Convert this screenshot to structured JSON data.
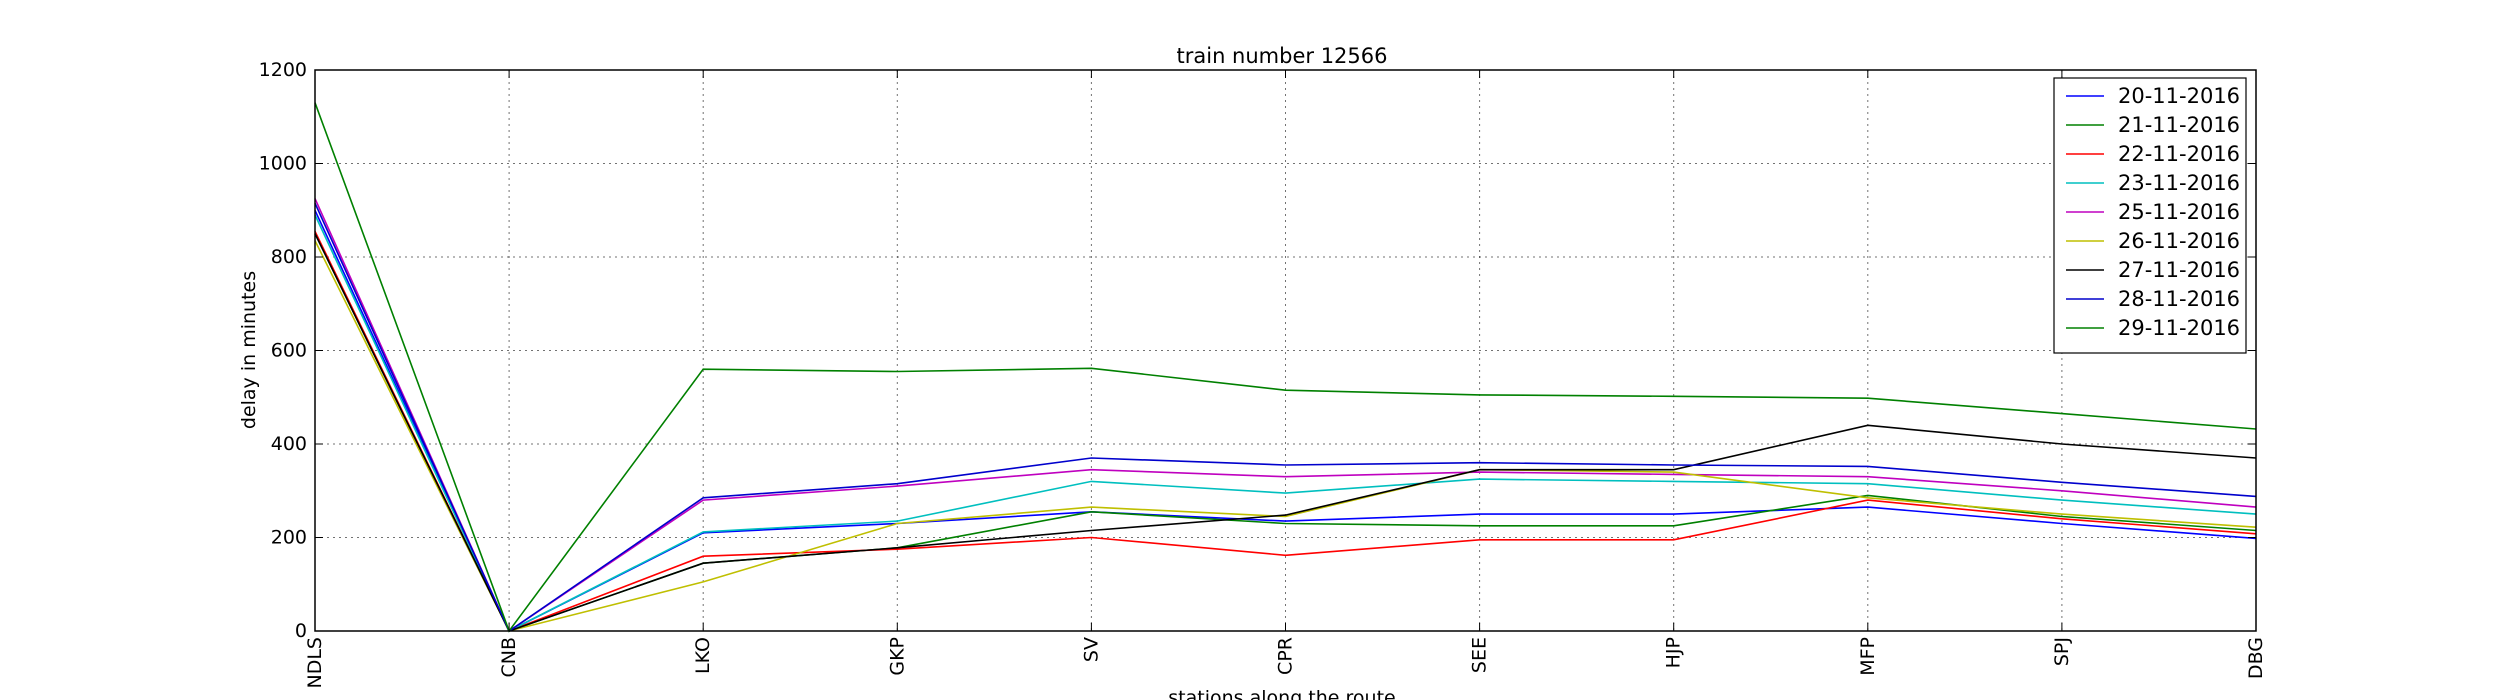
{
  "chart_data": {
    "type": "line",
    "title": "train number 12566",
    "xlabel": "stations along the route",
    "ylabel": "delay in minutes",
    "categories": [
      "NDLS",
      "CNB",
      "LKO",
      "GKP",
      "SV",
      "CPR",
      "SEE",
      "HJP",
      "MFP",
      "SPJ",
      "DBG"
    ],
    "ylim": [
      0,
      1200
    ],
    "yticks": [
      0,
      200,
      400,
      600,
      800,
      1000,
      1200
    ],
    "grid": true,
    "legend_position": "top-right",
    "series": [
      {
        "name": "20-11-2016",
        "color": "#0000ff",
        "values": [
          900,
          0,
          210,
          230,
          255,
          235,
          250,
          250,
          265,
          230,
          198
        ]
      },
      {
        "name": "21-11-2016",
        "color": "#008000",
        "values": [
          850,
          0,
          145,
          178,
          255,
          230,
          225,
          225,
          290,
          245,
          215
        ]
      },
      {
        "name": "22-11-2016",
        "color": "#ff0000",
        "values": [
          855,
          0,
          160,
          175,
          200,
          162,
          195,
          195,
          280,
          240,
          208
        ]
      },
      {
        "name": "23-11-2016",
        "color": "#00bfbf",
        "values": [
          890,
          0,
          212,
          235,
          320,
          295,
          325,
          320,
          315,
          280,
          250
        ]
      },
      {
        "name": "25-11-2016",
        "color": "#bf00bf",
        "values": [
          925,
          0,
          280,
          310,
          345,
          330,
          340,
          335,
          330,
          300,
          265
        ]
      },
      {
        "name": "26-11-2016",
        "color": "#bfbf00",
        "values": [
          835,
          0,
          105,
          230,
          265,
          245,
          345,
          340,
          285,
          250,
          222
        ]
      },
      {
        "name": "27-11-2016",
        "color": "#000000",
        "values": [
          850,
          0,
          145,
          178,
          215,
          248,
          345,
          345,
          440,
          400,
          370
        ]
      },
      {
        "name": "28-11-2016",
        "color": "#0000cc",
        "values": [
          915,
          0,
          285,
          315,
          370,
          355,
          360,
          355,
          352,
          318,
          288
        ]
      },
      {
        "name": "29-11-2016",
        "color": "#008000",
        "values": [
          1130,
          0,
          560,
          555,
          562,
          515,
          505,
          502,
          498,
          465,
          432
        ]
      }
    ]
  }
}
